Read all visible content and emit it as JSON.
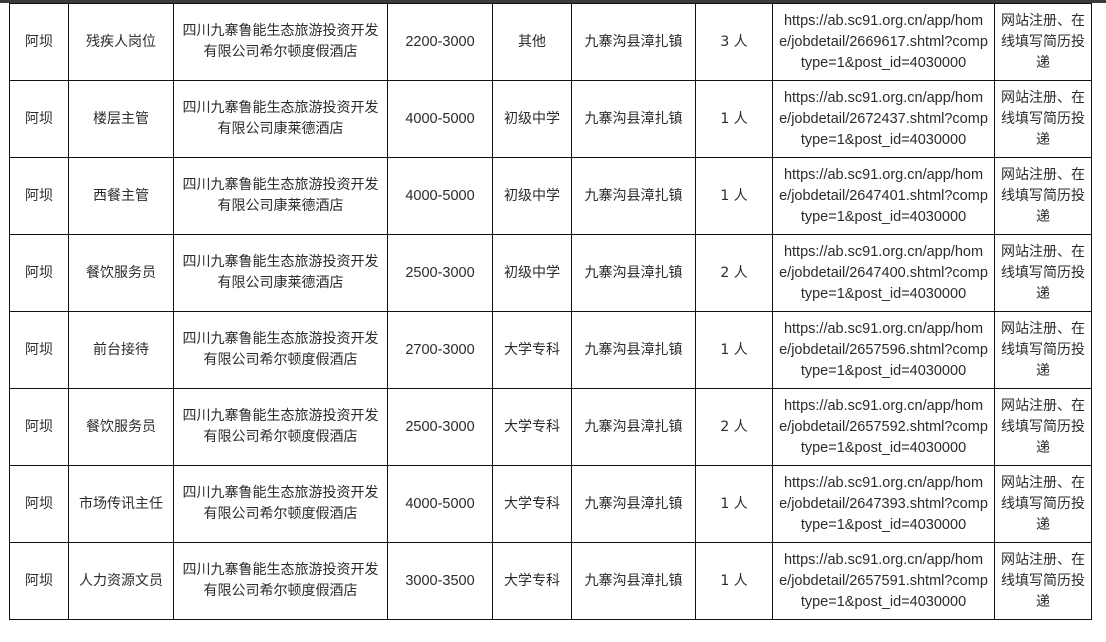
{
  "rows": [
    {
      "region": "阿坝",
      "position": "残疾人岗位",
      "company": "四川九寨鲁能生态旅游投资开发有限公司希尔顿度假酒店",
      "salary": "2200-3000",
      "education": "其他",
      "location": "九寨沟县漳扎镇",
      "count": "3 人",
      "url": "https://ab.sc91.org.cn/app/home/jobdetail/2669617.shtml?comptype=1&post_id=4030000",
      "apply": "网站注册、在线填写简历投递"
    },
    {
      "region": "阿坝",
      "position": "楼层主管",
      "company": "四川九寨鲁能生态旅游投资开发有限公司康莱德酒店",
      "salary": "4000-5000",
      "education": "初级中学",
      "location": "九寨沟县漳扎镇",
      "count": "1 人",
      "url": "https://ab.sc91.org.cn/app/home/jobdetail/2672437.shtml?comptype=1&post_id=4030000",
      "apply": "网站注册、在线填写简历投递"
    },
    {
      "region": "阿坝",
      "position": "西餐主管",
      "company": "四川九寨鲁能生态旅游投资开发有限公司康莱德酒店",
      "salary": "4000-5000",
      "education": "初级中学",
      "location": "九寨沟县漳扎镇",
      "count": "1 人",
      "url": "https://ab.sc91.org.cn/app/home/jobdetail/2647401.shtml?comptype=1&post_id=4030000",
      "apply": "网站注册、在线填写简历投递"
    },
    {
      "region": "阿坝",
      "position": "餐饮服务员",
      "company": "四川九寨鲁能生态旅游投资开发有限公司康莱德酒店",
      "salary": "2500-3000",
      "education": "初级中学",
      "location": "九寨沟县漳扎镇",
      "count": "2 人",
      "url": "https://ab.sc91.org.cn/app/home/jobdetail/2647400.shtml?comptype=1&post_id=4030000",
      "apply": "网站注册、在线填写简历投递"
    },
    {
      "region": "阿坝",
      "position": "前台接待",
      "company": "四川九寨鲁能生态旅游投资开发有限公司希尔顿度假酒店",
      "salary": "2700-3000",
      "education": "大学专科",
      "location": "九寨沟县漳扎镇",
      "count": "1 人",
      "url": "https://ab.sc91.org.cn/app/home/jobdetail/2657596.shtml?comptype=1&post_id=4030000",
      "apply": "网站注册、在线填写简历投递"
    },
    {
      "region": "阿坝",
      "position": "餐饮服务员",
      "company": "四川九寨鲁能生态旅游投资开发有限公司希尔顿度假酒店",
      "salary": "2500-3000",
      "education": "大学专科",
      "location": "九寨沟县漳扎镇",
      "count": "2 人",
      "url": "https://ab.sc91.org.cn/app/home/jobdetail/2657592.shtml?comptype=1&post_id=4030000",
      "apply": "网站注册、在线填写简历投递"
    },
    {
      "region": "阿坝",
      "position": "市场传讯主任",
      "company": "四川九寨鲁能生态旅游投资开发有限公司希尔顿度假酒店",
      "salary": "4000-5000",
      "education": "大学专科",
      "location": "九寨沟县漳扎镇",
      "count": "1 人",
      "url": "https://ab.sc91.org.cn/app/home/jobdetail/2647393.shtml?comptype=1&post_id=4030000",
      "apply": "网站注册、在线填写简历投递"
    },
    {
      "region": "阿坝",
      "position": "人力资源文员",
      "company": "四川九寨鲁能生态旅游投资开发有限公司希尔顿度假酒店",
      "salary": "3000-3500",
      "education": "大学专科",
      "location": "九寨沟县漳扎镇",
      "count": "1 人",
      "url": "https://ab.sc91.org.cn/app/home/jobdetail/2657591.shtml?comptype=1&post_id=4030000",
      "apply": "网站注册、在线填写简历投递"
    }
  ]
}
